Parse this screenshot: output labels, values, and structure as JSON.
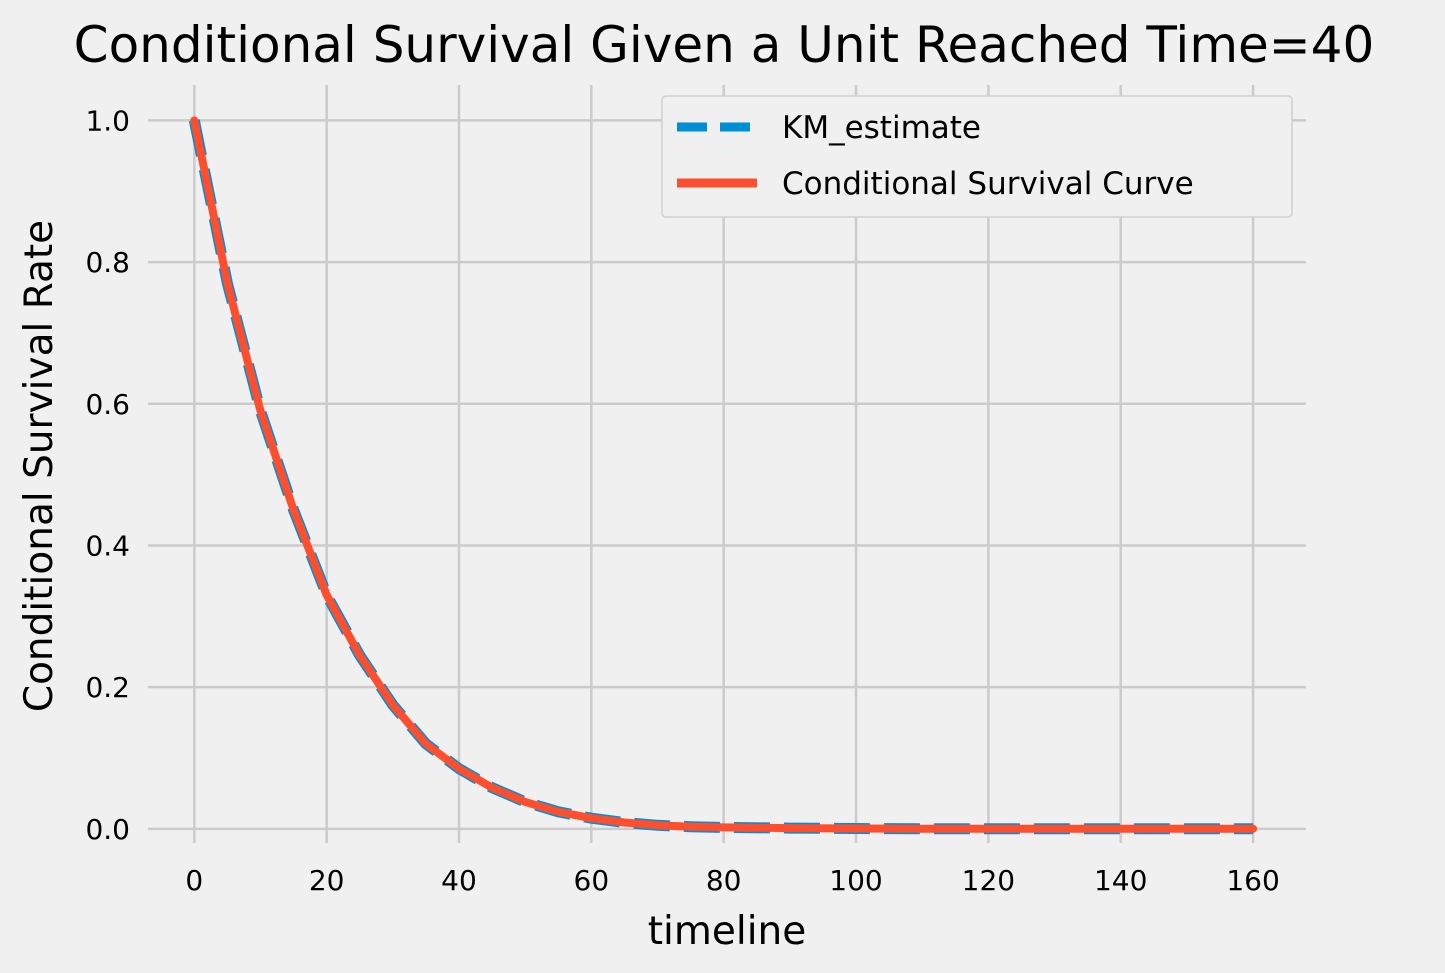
{
  "chart_data": {
    "type": "line",
    "title": "Conditional Survival Given a Unit Reached Time=40",
    "xlabel": "timeline",
    "ylabel": "Conditional Survival Rate",
    "xlim": [
      -7,
      168
    ],
    "ylim": [
      -0.02,
      1.05
    ],
    "xticks": [
      0,
      20,
      40,
      60,
      80,
      100,
      120,
      140,
      160
    ],
    "yticks": [
      0.0,
      0.2,
      0.4,
      0.6,
      0.8,
      1.0
    ],
    "xtick_labels": [
      "0",
      "20",
      "40",
      "60",
      "80",
      "100",
      "120",
      "140",
      "160"
    ],
    "ytick_labels": [
      "0.0",
      "0.2",
      "0.4",
      "0.6",
      "0.8",
      "1.0"
    ],
    "grid": true,
    "legend_position": "upper right",
    "series": [
      {
        "name": "KM_estimate",
        "color": "#008fd5",
        "style": "dashed",
        "x": [
          0,
          5,
          10,
          15,
          20,
          25,
          30,
          35,
          40,
          45,
          50,
          55,
          60,
          65,
          70,
          75,
          80,
          90,
          100,
          110,
          120,
          130,
          140,
          150,
          160
        ],
        "y": [
          1.0,
          0.77,
          0.59,
          0.45,
          0.33,
          0.245,
          0.175,
          0.12,
          0.085,
          0.058,
          0.038,
          0.024,
          0.015,
          0.009,
          0.005,
          0.003,
          0.002,
          0.001,
          0.0005,
          0.0,
          0.0,
          0.0,
          0.0,
          0.0,
          0.0
        ]
      },
      {
        "name": "Conditional Survival Curve",
        "color": "#fc4f30",
        "style": "solid",
        "x": [
          0,
          5,
          10,
          15,
          20,
          25,
          30,
          35,
          40,
          45,
          50,
          55,
          60,
          65,
          70,
          75,
          80,
          90,
          100,
          110,
          120,
          130,
          140,
          150,
          160
        ],
        "y": [
          1.0,
          0.77,
          0.59,
          0.45,
          0.33,
          0.245,
          0.175,
          0.12,
          0.085,
          0.058,
          0.038,
          0.024,
          0.015,
          0.009,
          0.005,
          0.003,
          0.002,
          0.001,
          0.0005,
          0.0,
          0.0,
          0.0,
          0.0,
          0.0,
          0.0
        ]
      }
    ]
  }
}
